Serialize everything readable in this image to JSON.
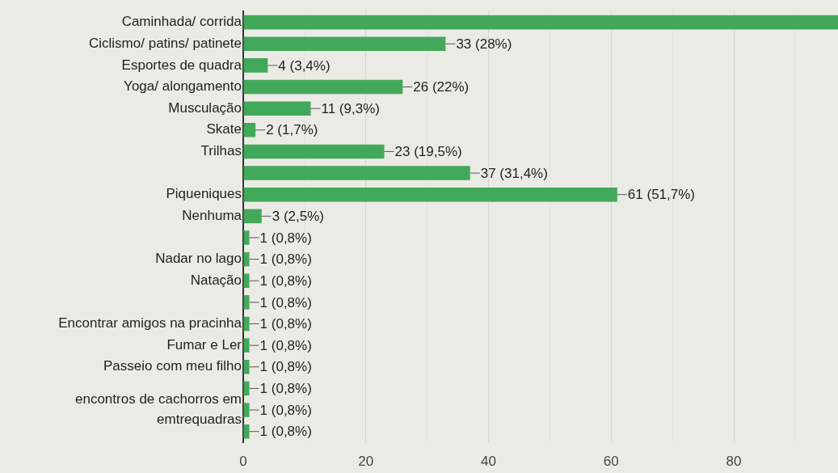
{
  "chart_data": {
    "type": "bar",
    "orientation": "horizontal",
    "categories": [
      "Caminhada/ corrida",
      "Ciclismo/ patins/ patinete",
      "Esportes de quadra",
      "Yoga/ alongamento",
      "Musculação",
      "Skate",
      "Trilhas",
      null,
      "Piqueniques",
      "Nenhuma",
      null,
      "Nadar no lago",
      "Natação",
      null,
      "Encontrar amigos na pracinha",
      "Fumar e Ler",
      "Passeio com meu filho",
      null,
      "encontros de cachorros em emtrequadras",
      null
    ],
    "values": [
      97,
      33,
      4,
      26,
      11,
      2,
      23,
      37,
      61,
      3,
      1,
      1,
      1,
      1,
      1,
      1,
      1,
      1,
      1,
      1
    ],
    "value_labels": [
      null,
      "33 (28%)",
      "4 (3,4%)",
      "26 (22%)",
      "11 (9,3%)",
      "2 (1,7%)",
      "23 (19,5%)",
      "37 (31,4%)",
      "61 (51,7%)",
      "3 (2,5%)",
      "1 (0,8%)",
      "1 (0,8%)",
      "1 (0,8%)",
      "1 (0,8%)",
      "1 (0,8%)",
      "1 (0,8%)",
      "1 (0,8%)",
      "1 (0,8%)",
      "1 (0,8%)",
      "1 (0,8%)"
    ],
    "color": "#43a95a",
    "xlim": [
      0,
      97
    ],
    "xticks": [
      0,
      {
        "value": 10,
        "label": null
      },
      20,
      {
        "value": 30,
        "label": null
      },
      40,
      {
        "value": 50,
        "label": null
      },
      60,
      {
        "value": 70,
        "label": null
      },
      80,
      {
        "value": 90,
        "label": null
      }
    ],
    "grid": "x",
    "legend": false
  }
}
